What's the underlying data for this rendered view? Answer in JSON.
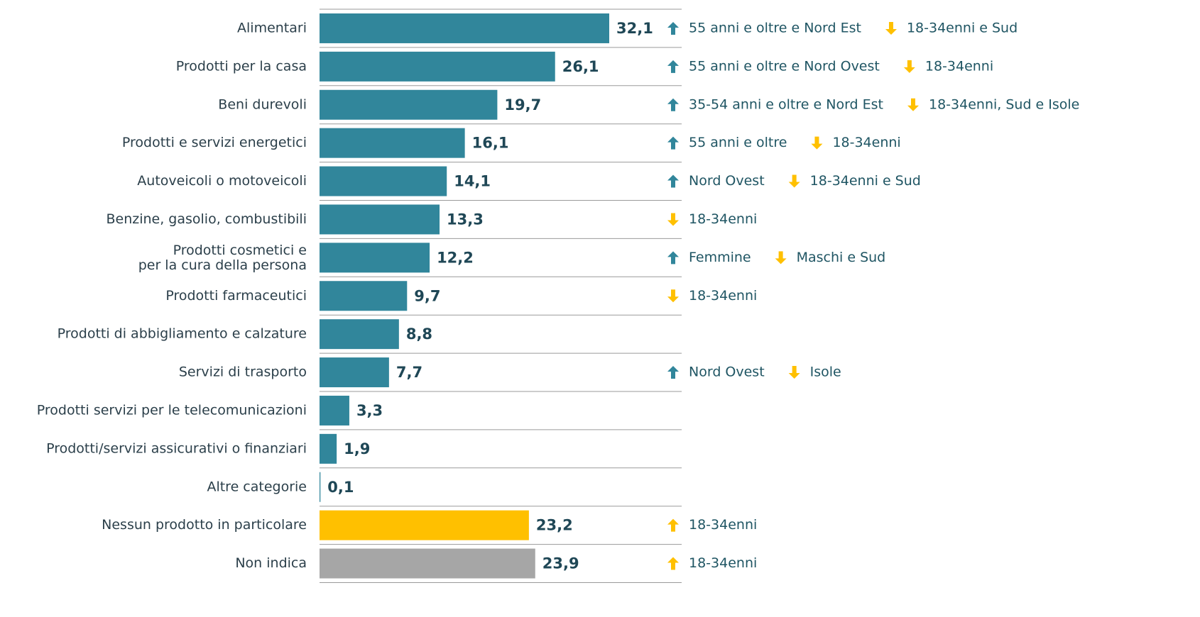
{
  "chart_data": {
    "type": "bar",
    "orientation": "horizontal",
    "categories": [
      "Alimentari",
      "Prodotti per la casa",
      "Beni durevoli",
      "Prodotti e servizi energetici",
      "Autoveicoli o motoveicoli",
      "Benzine, gasolio, combustibili",
      "Prodotti cosmetici e\nper la cura della persona",
      "Prodotti farmaceutici",
      "Prodotti di abbigliamento e calzature",
      "Servizi di trasporto",
      "Prodotti servizi per le telecomunicazioni",
      "Prodotti/servizi assicurativi o finanziari",
      "Altre categorie",
      "Nessun prodotto in particolare",
      "Non indica"
    ],
    "values": [
      32.1,
      26.1,
      19.7,
      16.1,
      14.1,
      13.3,
      12.2,
      9.7,
      8.8,
      7.7,
      3.3,
      1.9,
      0.1,
      23.2,
      23.9
    ],
    "value_labels": [
      "32,1",
      "26,1",
      "19,7",
      "16,1",
      "14,1",
      "13,3",
      "12,2",
      "9,7",
      "8,8",
      "7,7",
      "3,3",
      "1,9",
      "0,1",
      "23,2",
      "23,9"
    ],
    "colors": [
      "#31869b",
      "#31869b",
      "#31869b",
      "#31869b",
      "#31869b",
      "#31869b",
      "#31869b",
      "#31869b",
      "#31869b",
      "#31869b",
      "#31869b",
      "#31869b",
      "#31869b",
      "#ffc000",
      "#a6a6a6"
    ],
    "annotations_up": [
      "55 anni e oltre e Nord Est",
      "55 anni e oltre e Nord Ovest",
      "35-54 anni e oltre e Nord Est",
      "55 anni e oltre",
      "Nord Ovest",
      null,
      "Femmine",
      null,
      null,
      "Nord Ovest",
      null,
      null,
      null,
      "18-34enni",
      "18-34enni"
    ],
    "annotations_up_colors": [
      "#31869b",
      "#31869b",
      "#31869b",
      "#31869b",
      "#31869b",
      null,
      "#31869b",
      null,
      null,
      "#31869b",
      null,
      null,
      null,
      "#ffc000",
      "#ffc000"
    ],
    "annotations_down": [
      "18-34enni e Sud",
      "18-34enni",
      "18-34enni, Sud e Isole",
      "18-34enni",
      "18-34enni e Sud",
      "18-34enni",
      "Maschi e Sud",
      "18-34enni",
      null,
      "Isole",
      null,
      null,
      null,
      null,
      null
    ],
    "annotations_down_color": "#ffc000"
  }
}
